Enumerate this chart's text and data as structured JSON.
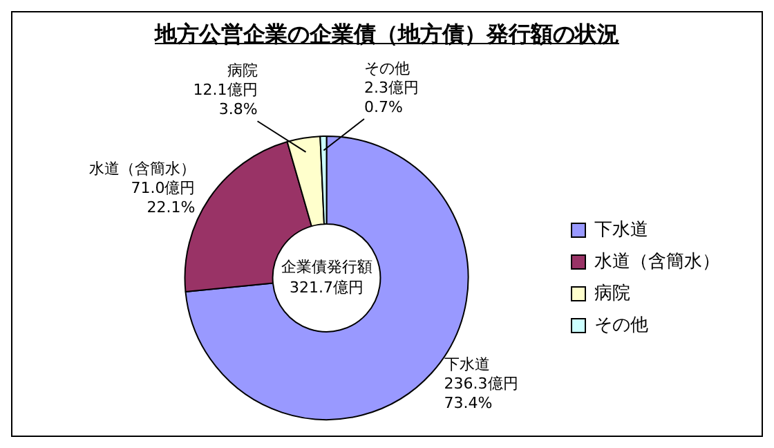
{
  "chart_data": {
    "type": "donut",
    "title": "地方公営企業の企業債（地方債）発行額の状況",
    "categories": [
      "下水道",
      "水道（含簡水）",
      "病院",
      "その他"
    ],
    "values": [
      236.3,
      71.0,
      12.1,
      2.3
    ],
    "colors": [
      "#9999ff",
      "#993366",
      "#ffffcc",
      "#ccffff"
    ],
    "value_labels": [
      "下水道\n236.3億円\n73.4%",
      "水道（含簡水）\n71.0億円\n22.1%",
      "病院\n12.1億円\n3.8%",
      "その他\n2.3億円\n0.7%"
    ],
    "annotations": [
      "企業債発行額\n321.7億円"
    ],
    "legend": "right"
  }
}
